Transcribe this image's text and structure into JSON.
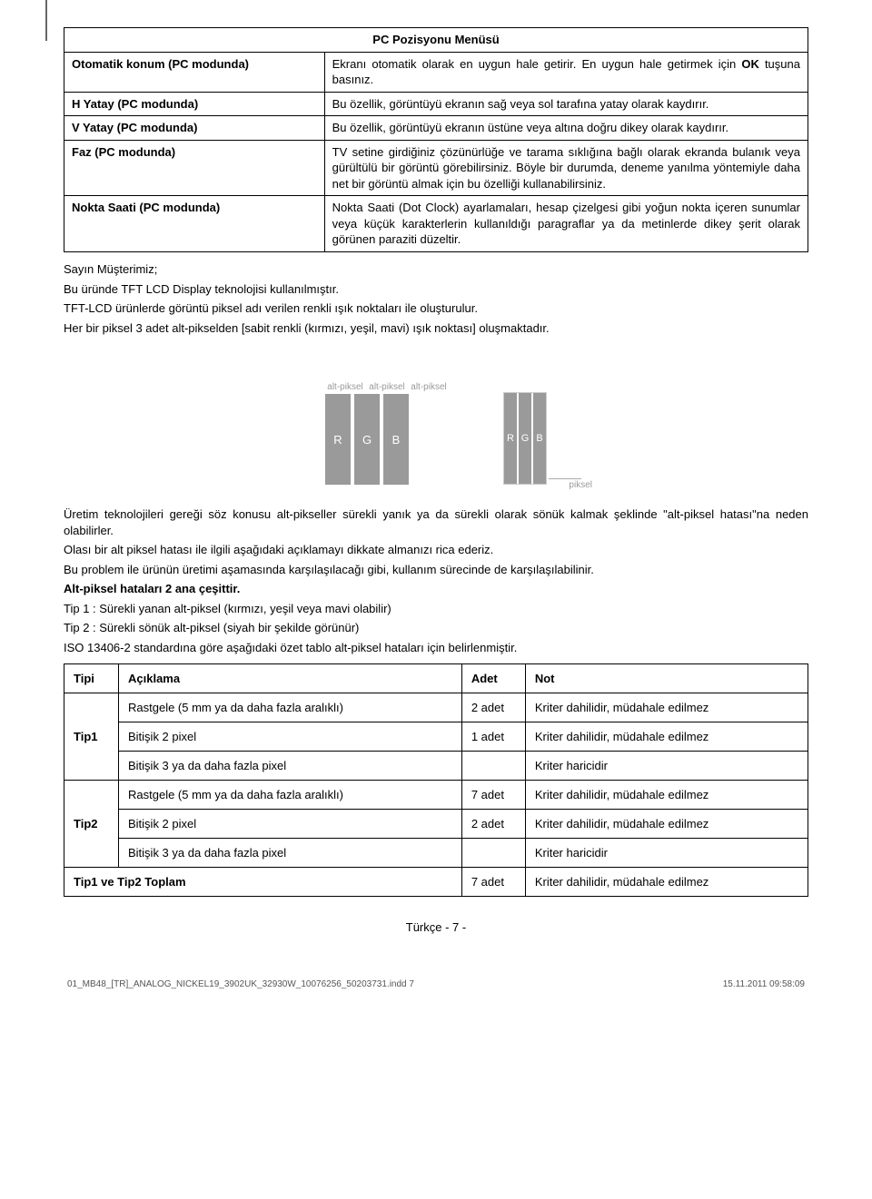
{
  "menuTable": {
    "header": "PC Pozisyonu Menüsü",
    "rows": [
      {
        "left": "Otomatik konum (PC modunda)",
        "right": "Ekranı otomatik olarak en uygun hale getirir. En uygun hale getirmek için <b>OK</b> tuşuna basınız."
      },
      {
        "left": "H Yatay (PC modunda)",
        "right": "Bu özellik, görüntüyü ekranın sağ veya sol tarafına yatay olarak kaydırır."
      },
      {
        "left": "V Yatay (PC modunda)",
        "right": "Bu özellik, görüntüyü ekranın üstüne veya altına doğru dikey olarak kaydırır."
      },
      {
        "left": "Faz (PC modunda)",
        "right": "TV setine girdiğiniz çözünürlüğe ve tarama sıklığına bağlı olarak ekranda bulanık veya gürültülü bir görüntü görebilirsiniz. Böyle bir durumda, deneme yanılma yöntemiyle daha net bir görüntü almak için bu özelliği kullanabilirsiniz."
      },
      {
        "left": "Nokta Saati (PC modunda)",
        "right": "Nokta Saati (Dot Clock) ayarlamaları, hesap çizelgesi gibi yoğun nokta içeren sunumlar veya küçük karakterlerin kullanıldığı paragraflar ya da metinlerde dikey şerit olarak görünen paraziti düzeltir."
      }
    ]
  },
  "intro": {
    "p1": "Sayın Müşterimiz;",
    "p2": "Bu üründe TFT LCD Display teknolojisi kullanılmıştır.",
    "p3": "TFT-LCD ürünlerde görüntü piksel adı verilen renkli ışık noktaları ile oluşturulur.",
    "p4": "Her bir piksel 3 adet alt-pikselden [sabit renkli (kırmızı, yeşil, mavi) ışık noktası] oluşmaktadır."
  },
  "diagram": {
    "altPiksel": "alt-piksel",
    "R": "R",
    "G": "G",
    "B": "B",
    "piksel": "piksel"
  },
  "body": {
    "p1": "Üretim teknolojileri gereği söz konusu alt-pikseller sürekli yanık ya da sürekli olarak sönük kalmak şeklinde \"alt-piksel hatası\"na neden olabilirler.",
    "p2": "Olası bir alt piksel hatası ile ilgili aşağıdaki açıklamayı dikkate almanızı rica ederiz.",
    "p3": "Bu problem ile ürünün üretimi aşamasında karşılaşılacağı gibi, kullanım sürecinde de karşılaşılabilinir.",
    "p4bold": "Alt-piksel hataları 2 ana çeşittir.",
    "p5": "Tip 1 : Sürekli yanan alt-piksel (kırmızı, yeşil veya mavi olabilir)",
    "p6": "Tip 2 : Sürekli sönük alt-piksel (siyah bir şekilde görünür)",
    "p7": "ISO 13406-2 standardına göre aşağıdaki özet tablo alt-piksel hataları için belirlenmiştir."
  },
  "defectTable": {
    "headers": {
      "tipi": "Tipi",
      "aciklama": "Açıklama",
      "adet": "Adet",
      "not": "Not"
    },
    "groups": [
      {
        "tipi": "Tip1",
        "rows": [
          {
            "aciklama": "Rastgele (5 mm ya da daha fazla aralıklı)",
            "adet": "2 adet",
            "not": "Kriter dahilidir, müdahale edilmez"
          },
          {
            "aciklama": "Bitişik 2 pixel",
            "adet": "1 adet",
            "not": "Kriter dahilidir, müdahale edilmez"
          },
          {
            "aciklama": "Bitişik 3 ya da daha fazla pixel",
            "adet": "",
            "not": "Kriter haricidir"
          }
        ]
      },
      {
        "tipi": "Tip2",
        "rows": [
          {
            "aciklama": "Rastgele (5 mm ya da daha fazla aralıklı)",
            "adet": "7 adet",
            "not": "Kriter dahilidir, müdahale edilmez"
          },
          {
            "aciklama": "Bitişik 2 pixel",
            "adet": "2 adet",
            "not": "Kriter dahilidir, müdahale edilmez"
          },
          {
            "aciklama": "Bitişik 3 ya da daha fazla pixel",
            "adet": "",
            "not": "Kriter haricidir"
          }
        ]
      }
    ],
    "total": {
      "label": "Tip1 ve Tip2 Toplam",
      "adet": "7 adet",
      "not": "Kriter dahilidir, müdahale edilmez"
    }
  },
  "footer": {
    "pageLabel": "Türkçe   - 7 -",
    "docName": "01_MB48_[TR]_ANALOG_NICKEL19_3902UK_32930W_10076256_50203731.indd   7",
    "timestamp": "15.11.2011   09:58:09"
  }
}
